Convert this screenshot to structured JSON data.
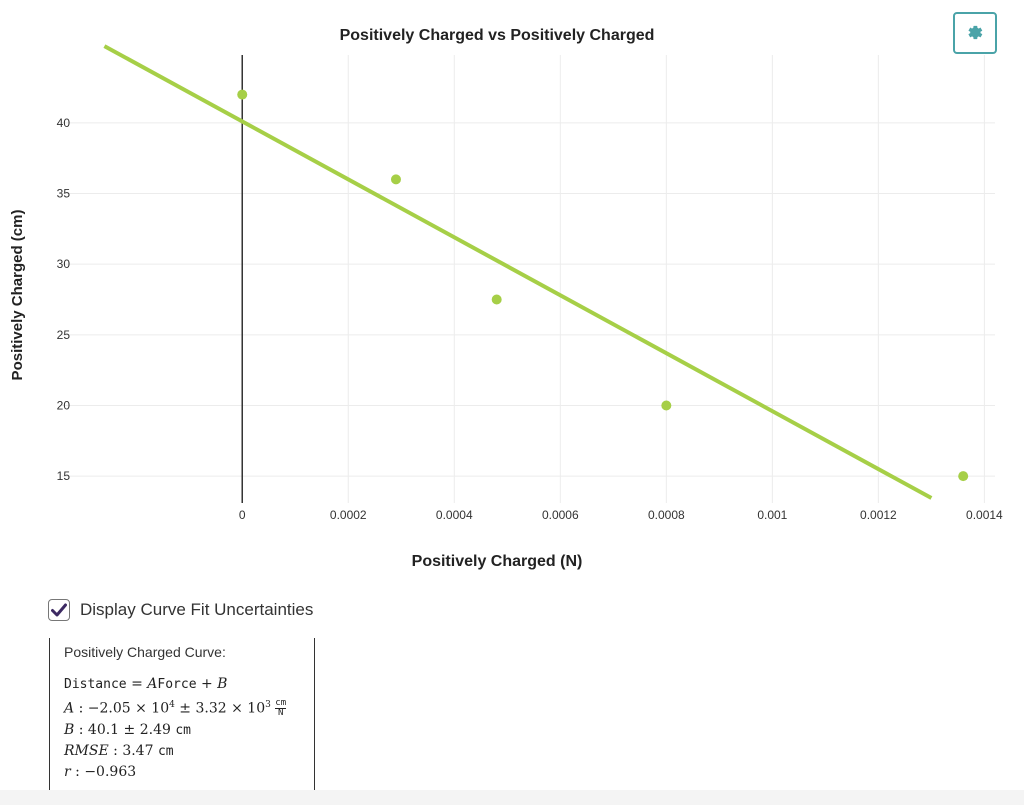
{
  "colors": {
    "series": "#a6cf47",
    "fit_line": "#a6cf47",
    "accent": "#4aa3a8",
    "checkbox_mark": "#3d2a63",
    "grid": "#ececec",
    "axis": "#333333"
  },
  "icons": {
    "settings": "gear-icon",
    "checkbox": "check-icon"
  },
  "chart_data": {
    "type": "scatter",
    "title": "Positively Charged vs Positively Charged",
    "xlabel": "Positively Charged (N)",
    "ylabel": "Positively Charged (cm)",
    "xlim": [
      -0.00034,
      0.00142
    ],
    "ylim": [
      13.1,
      44.8
    ],
    "x_ticks": [
      0,
      0.0002,
      0.0004,
      0.0006,
      0.0008,
      0.001,
      0.0012,
      0.0014
    ],
    "x_tick_labels": [
      "0",
      "0.0002",
      "0.0004",
      "0.0006",
      "0.0008",
      "0.001",
      "0.0012",
      "0.0014"
    ],
    "y_ticks": [
      15,
      20,
      25,
      30,
      35,
      40
    ],
    "y_tick_labels": [
      "15",
      "20",
      "25",
      "30",
      "35",
      "40"
    ],
    "grid": true,
    "points": [
      {
        "x": 0,
        "y": 42
      },
      {
        "x": 0.00029,
        "y": 36
      },
      {
        "x": 0.00048,
        "y": 27.5
      },
      {
        "x": 0.0008,
        "y": 20
      },
      {
        "x": 0.00136,
        "y": 15
      }
    ],
    "fit": {
      "slope": -20500,
      "intercept": 40.1,
      "x_range": [
        -0.00026,
        0.0013
      ]
    }
  },
  "controls": {
    "checkbox_label": "Display Curve Fit Uncertainties",
    "checkbox_checked": true
  },
  "fit_results": {
    "curve_title": "Positively Charged Curve:",
    "eq_lhs": "Distance",
    "eq_rhs_var": "Force",
    "a_label": "A",
    "a_value": "−2.05 × 10",
    "a_exp": "4",
    "a_unc": "3.32 × 10",
    "a_unc_exp": "3",
    "a_unit_num": "cm",
    "a_unit_den": "N",
    "b_label": "B",
    "b_value": "40.1 ± 2.49",
    "b_unit": "cm",
    "rmse_label": "RMSE",
    "rmse_value": "3.47",
    "rmse_unit": "cm",
    "r_label": "r",
    "r_value": "−0.963"
  }
}
